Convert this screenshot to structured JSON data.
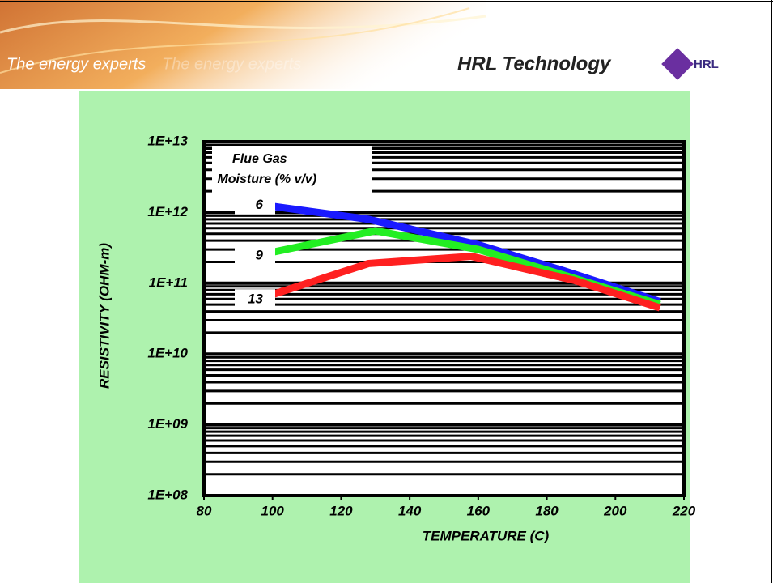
{
  "header": {
    "tagline": "The energy experts",
    "tagline_echo": "The energy experts",
    "brand": "HRL Technology",
    "logo_text": "HRL"
  },
  "chart_data": {
    "type": "line",
    "yscale": "log",
    "xlabel": "TEMPERATURE (C)",
    "ylabel": "RESISTIVITY (OHM-m)",
    "legend_title": "Flue Gas Moisture (% v/v)",
    "xlim": [
      80,
      220
    ],
    "xticks": [
      80,
      100,
      120,
      140,
      160,
      180,
      200,
      220
    ],
    "ylim": [
      100000000,
      10000000000000
    ],
    "yticks": [
      {
        "value": 100000000,
        "label": "1E+08"
      },
      {
        "value": 1000000000,
        "label": "1E+09"
      },
      {
        "value": 10000000000,
        "label": "1E+10"
      },
      {
        "value": 100000000000,
        "label": "1E+11"
      },
      {
        "value": 1000000000000,
        "label": "1E+12"
      },
      {
        "value": 10000000000000,
        "label": "1E+13"
      }
    ],
    "grid": true,
    "series": [
      {
        "name": "6",
        "color": "#1a1aff",
        "x": [
          96,
          128,
          160,
          185,
          213
        ],
        "values": [
          1300000000000,
          800000000000,
          350000000000,
          150000000000,
          55000000000
        ]
      },
      {
        "name": "9",
        "color": "#22ee22",
        "x": [
          96,
          130,
          160,
          185,
          213
        ],
        "values": [
          250000000000,
          550000000000,
          300000000000,
          130000000000,
          50000000000
        ]
      },
      {
        "name": "13",
        "color": "#ff2020",
        "x": [
          96,
          128,
          158,
          188,
          213
        ],
        "values": [
          60000000000,
          190000000000,
          240000000000,
          110000000000,
          45000000000
        ]
      }
    ]
  }
}
